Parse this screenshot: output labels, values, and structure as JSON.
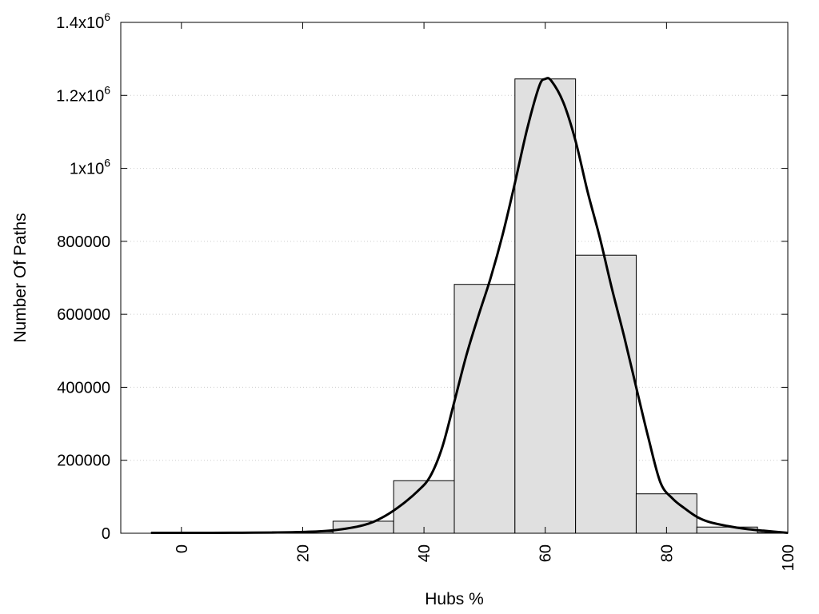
{
  "chart_data": {
    "type": "bar",
    "xlabel": "Hubs %",
    "ylabel": "Number Of Paths",
    "xlim": [
      -10,
      100
    ],
    "ylim": [
      0,
      1400000
    ],
    "grid": true,
    "x_ticks": [
      {
        "value": 0,
        "label": "0"
      },
      {
        "value": 20,
        "label": "20"
      },
      {
        "value": 40,
        "label": "40"
      },
      {
        "value": 60,
        "label": "60"
      },
      {
        "value": 80,
        "label": "80"
      },
      {
        "value": 100,
        "label": "100"
      }
    ],
    "y_ticks": [
      {
        "value": 0,
        "base": "0",
        "exp": ""
      },
      {
        "value": 200000,
        "base": "200000",
        "exp": ""
      },
      {
        "value": 400000,
        "base": "400000",
        "exp": ""
      },
      {
        "value": 600000,
        "base": "600000",
        "exp": ""
      },
      {
        "value": 800000,
        "base": "800000",
        "exp": ""
      },
      {
        "value": 1000000,
        "base": "1x10",
        "exp": "6"
      },
      {
        "value": 1200000,
        "base": "1.2x10",
        "exp": "6"
      },
      {
        "value": 1400000,
        "base": "1.4x10",
        "exp": "6"
      }
    ],
    "bar_width": 10,
    "bars": [
      {
        "x": 0,
        "value": 1000
      },
      {
        "x": 10,
        "value": 1500
      },
      {
        "x": 20,
        "value": 4000
      },
      {
        "x": 30,
        "value": 33000
      },
      {
        "x": 40,
        "value": 144000
      },
      {
        "x": 50,
        "value": 682000
      },
      {
        "x": 60,
        "value": 1245000
      },
      {
        "x": 70,
        "value": 762000
      },
      {
        "x": 80,
        "value": 108000
      },
      {
        "x": 90,
        "value": 17000
      },
      {
        "x": 100,
        "value": 2000
      }
    ],
    "fit_curve": {
      "x": [
        -5,
        0,
        5,
        10,
        15,
        20,
        25,
        30,
        33,
        36,
        39,
        41,
        43,
        45,
        47,
        49,
        51,
        53,
        55,
        57,
        59,
        60,
        61,
        63,
        65,
        67,
        69,
        71,
        73,
        75,
        77,
        79,
        81,
        83,
        85,
        87,
        90,
        93,
        96,
        100
      ],
      "y": [
        1000,
        1000,
        1000,
        1500,
        2000,
        3500,
        8000,
        22000,
        42000,
        74000,
        116000,
        155000,
        235000,
        360000,
        488000,
        597000,
        700000,
        820000,
        960000,
        1107000,
        1225000,
        1245000,
        1240000,
        1180000,
        1075000,
        935000,
        810000,
        670000,
        540000,
        400000,
        262000,
        139000,
        95000,
        68000,
        45000,
        31000,
        20000,
        12000,
        7000,
        1000
      ]
    },
    "colors": {
      "bar_fill": "#e0e0e0",
      "bar_stroke": "#000000",
      "curve": "#000000",
      "grid": "#cccccc"
    }
  }
}
